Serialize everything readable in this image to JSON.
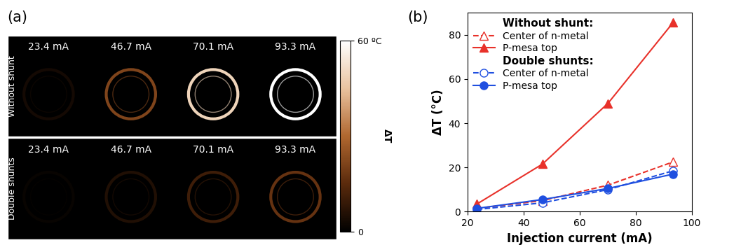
{
  "chart_data": [
    {
      "type": "image_grid",
      "label": "(a)",
      "columns": [
        "23.4 mA",
        "46.7 mA",
        "70.1 mA",
        "93.3 mA"
      ],
      "rows": [
        "Without shunt",
        "Double shunts"
      ],
      "colorbar_label": "ΔT",
      "colorbar_range": [
        0,
        60
      ],
      "colorbar_ticks": [
        0,
        {
          "value": 60,
          "label": "60 ºC"
        }
      ]
    },
    {
      "type": "line",
      "label": "(b)",
      "x_label": "Injection current (mA)",
      "y_label": "ΔT (°C)",
      "x": [
        23.4,
        46.7,
        70.1,
        93.3
      ],
      "xlim": [
        20,
        100
      ],
      "xticks": [
        20,
        40,
        60,
        80,
        100
      ],
      "ylim": [
        0,
        90
      ],
      "yticks": [
        0,
        20,
        40,
        60,
        80
      ],
      "legend": "upper left",
      "groups": [
        "Without shunt:",
        "Double shunts:"
      ],
      "series": [
        {
          "name": "Center of n-metal",
          "group": 0,
          "color": "#e8312a",
          "line_style": "dashed",
          "marker": "triangle_open",
          "values": [
            1.5,
            5.0,
            12.0,
            22.5
          ]
        },
        {
          "name": "P-mesa top",
          "group": 0,
          "color": "#e8312a",
          "line_style": "solid",
          "marker": "triangle",
          "values": [
            3.5,
            21.5,
            49.0,
            85.5
          ]
        },
        {
          "name": "Center of n-metal",
          "group": 1,
          "color": "#1f4fe0",
          "line_style": "dashed",
          "marker": "circle_open",
          "values": [
            1.0,
            4.0,
            10.0,
            18.5
          ]
        },
        {
          "name": "P-mesa top",
          "group": 1,
          "color": "#1f4fe0",
          "line_style": "solid",
          "marker": "circle",
          "values": [
            1.5,
            5.5,
            10.5,
            17.0
          ]
        }
      ]
    }
  ]
}
